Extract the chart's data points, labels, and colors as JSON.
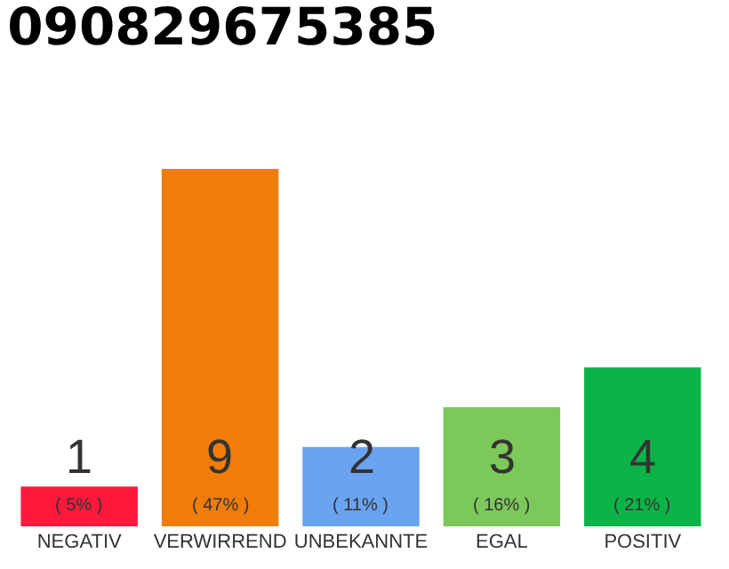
{
  "chart_data": {
    "type": "bar",
    "title": "090829675385",
    "categories": [
      "NEGATIV",
      "VERWIRREND",
      "UNBEKANNTE",
      "EGAL",
      "POSITIV"
    ],
    "values": [
      1,
      9,
      2,
      3,
      4
    ],
    "colors": [
      "#ff1a3c",
      "#f07d0a",
      "#6aa3f0",
      "#7dc85a",
      "#0cb447"
    ],
    "value_labels": [
      "1",
      "9",
      "2",
      "3",
      "4"
    ],
    "annotations": [
      {
        "text": "( 5% )",
        "x": "NEGATIV",
        "y": 0
      },
      {
        "text": "( 47% )",
        "x": "VERWIRREND",
        "y": 0
      },
      {
        "text": "( 11% )",
        "x": "UNBEKANNTE",
        "y": 0
      },
      {
        "text": "( 16% )",
        "x": "EGAL",
        "y": 0
      },
      {
        "text": "( 21% )",
        "x": "POSITIV",
        "y": 0
      }
    ],
    "grid": false
  }
}
